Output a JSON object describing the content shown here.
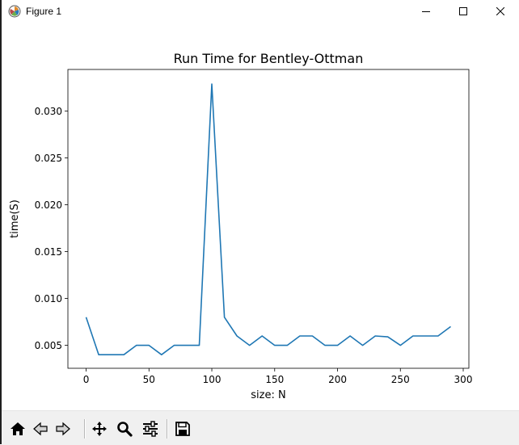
{
  "window": {
    "title": "Figure 1",
    "controls": [
      "minimize",
      "maximize",
      "close"
    ]
  },
  "toolbar": {
    "buttons": [
      "home-icon",
      "back-icon",
      "forward-icon",
      "pan-icon",
      "zoom-icon",
      "configure-subplots-icon",
      "save-icon"
    ]
  },
  "chart_data": {
    "type": "line",
    "title": "Run Time for Bentley-Ottman",
    "xlabel": "size: N",
    "ylabel": "time(S)",
    "xlim": [
      -14.5,
      304.5
    ],
    "ylim": [
      0.00255,
      0.03445
    ],
    "xticks": [
      0,
      50,
      100,
      150,
      200,
      250,
      300
    ],
    "xtick_labels": [
      "0",
      "50",
      "100",
      "150",
      "200",
      "250",
      "300"
    ],
    "yticks": [
      0.005,
      0.01,
      0.015,
      0.02,
      0.025,
      0.03
    ],
    "ytick_labels": [
      "0.005",
      "0.010",
      "0.015",
      "0.020",
      "0.025",
      "0.030"
    ],
    "grid": false,
    "line_color": "#1f77b4",
    "series": [
      {
        "x": [
          0,
          10,
          20,
          30,
          40,
          50,
          60,
          70,
          80,
          90,
          100,
          110,
          120,
          130,
          140,
          150,
          160,
          170,
          180,
          190,
          200,
          210,
          220,
          230,
          240,
          250,
          260,
          270,
          280,
          290
        ],
        "values": [
          0.008,
          0.004,
          0.004,
          0.004,
          0.005,
          0.005,
          0.004,
          0.005,
          0.005,
          0.005,
          0.0329,
          0.008,
          0.006,
          0.005,
          0.006,
          0.005,
          0.005,
          0.006,
          0.006,
          0.005,
          0.005,
          0.006,
          0.005,
          0.006,
          0.0059,
          0.005,
          0.006,
          0.006,
          0.006,
          0.007
        ]
      }
    ]
  }
}
